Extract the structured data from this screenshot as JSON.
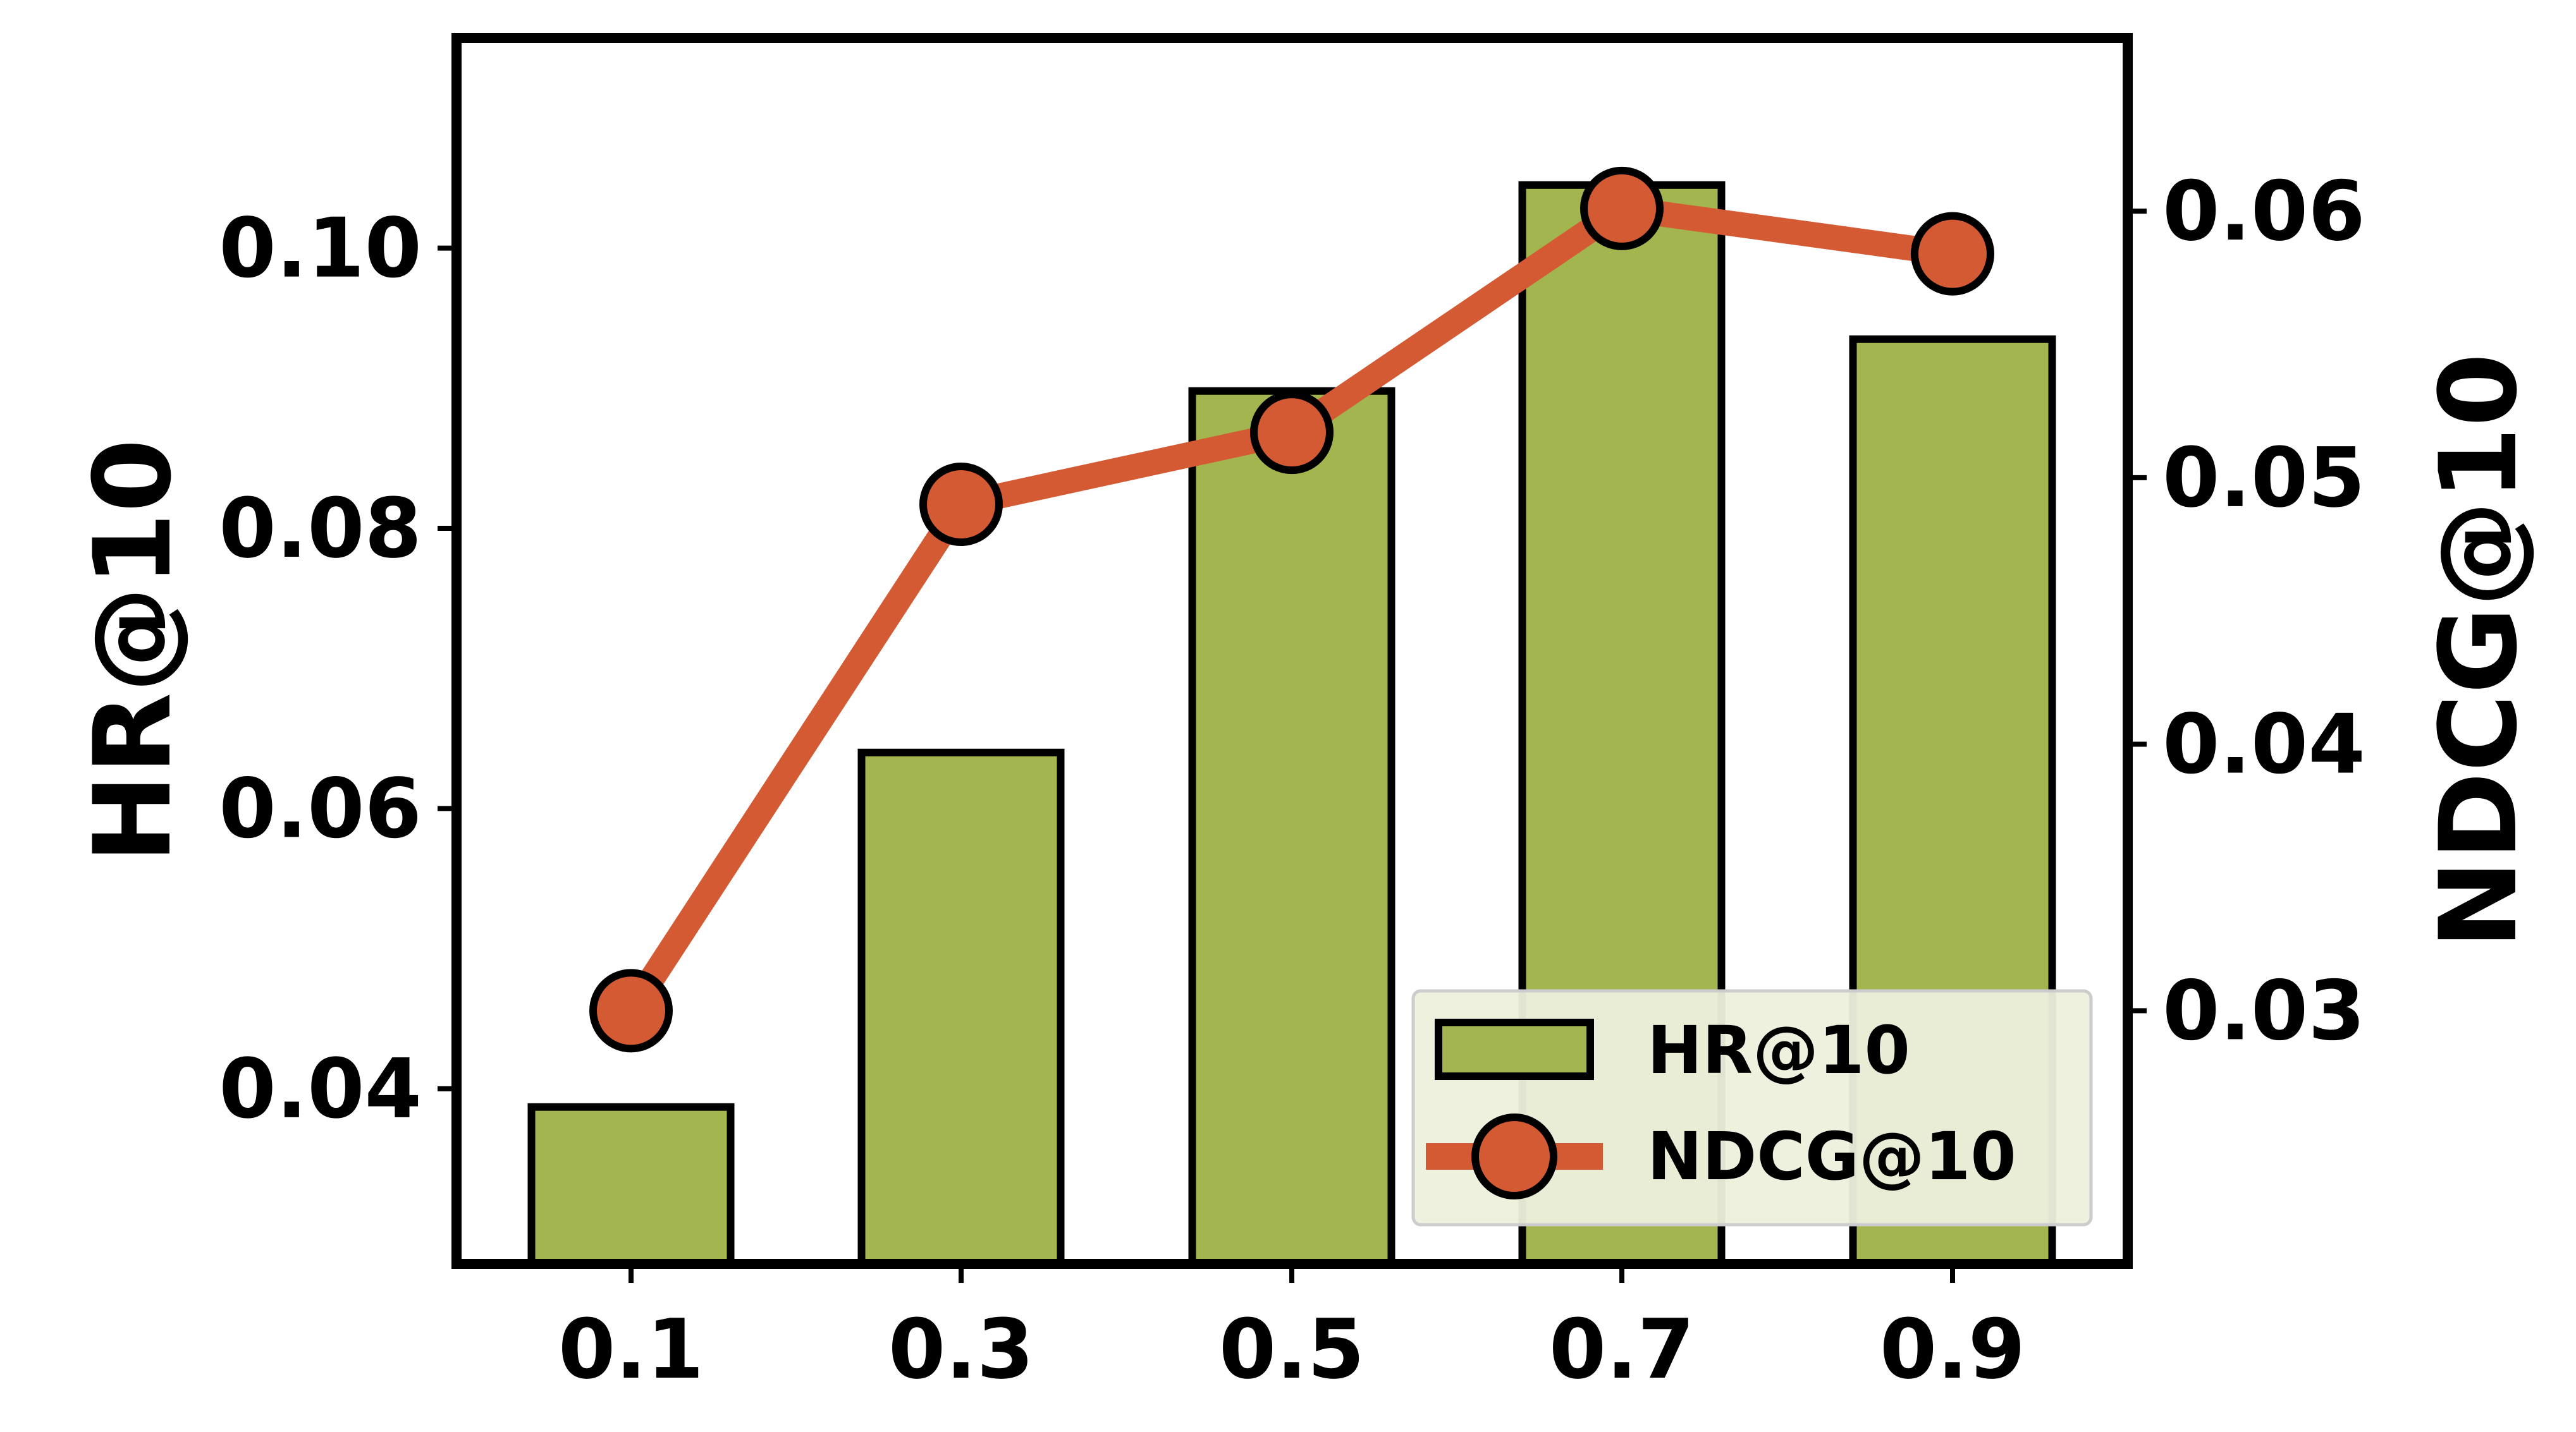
{
  "chart_data": {
    "type": "bar",
    "categories": [
      "0.1",
      "0.3",
      "0.5",
      "0.7",
      "0.9"
    ],
    "title": "",
    "xlabel": "",
    "ylabel": "HR@10",
    "y2label": "NDCG@10",
    "ylim": [
      0.0275,
      0.115
    ],
    "y2lim": [
      0.0205,
      0.0665
    ],
    "yticks": [
      "0.04",
      "0.06",
      "0.08",
      "0.10"
    ],
    "y2ticks": [
      "0.03",
      "0.04",
      "0.05",
      "0.06"
    ],
    "grid": false,
    "legend_position": "bottom-right",
    "colors": {
      "bar": "#a3b54e",
      "line": "#d45a33",
      "legend_bg": "#eef0dd"
    },
    "series": [
      {
        "name": "HR@10",
        "type": "bar",
        "axis": "left",
        "values": [
          0.0387,
          0.064,
          0.0898,
          0.1045,
          0.0935
        ]
      },
      {
        "name": "NDCG@10",
        "type": "line",
        "axis": "right",
        "values": [
          0.03,
          0.049,
          0.0517,
          0.0601,
          0.0584
        ]
      }
    ]
  }
}
